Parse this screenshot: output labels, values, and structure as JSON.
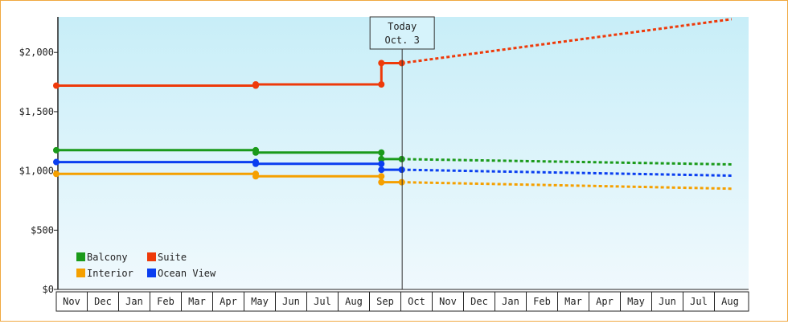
{
  "chart_data": {
    "type": "line",
    "title": "",
    "xlabel": "",
    "ylabel": "",
    "ylim": [
      0,
      2300
    ],
    "y_ticks": [
      {
        "value": 0,
        "label": "$0"
      },
      {
        "value": 500,
        "label": "$500"
      },
      {
        "value": 1000,
        "label": "$1,000"
      },
      {
        "value": 1500,
        "label": "$1,500"
      },
      {
        "value": 2000,
        "label": "$2,000"
      }
    ],
    "x_months": [
      "Nov",
      "Dec",
      "Jan",
      "Feb",
      "Mar",
      "Apr",
      "May",
      "Jun",
      "Jul",
      "Aug",
      "Sep",
      "Oct",
      "Nov",
      "Dec",
      "Jan",
      "Feb",
      "Mar",
      "Apr",
      "May",
      "Jun",
      "Jul",
      "Aug"
    ],
    "today_index": 11,
    "today_label_line1": "Today",
    "today_label_line2": "Oct. 3",
    "grid": false,
    "legend_position": "bottom-left",
    "background": {
      "top": "#c8eef8",
      "bottom": "#f0f9fd"
    },
    "series": [
      {
        "name": "Balcony",
        "color": "#1a9a1a",
        "history": [
          [
            0,
            1175
          ],
          [
            6.35,
            1175
          ],
          [
            6.35,
            1155
          ],
          [
            10.35,
            1155
          ],
          [
            10.35,
            1100
          ],
          [
            11,
            1100
          ]
        ],
        "markers": [
          [
            0,
            1175
          ],
          [
            6.35,
            1175
          ],
          [
            6.35,
            1155
          ],
          [
            10.35,
            1155
          ],
          [
            10.35,
            1100
          ],
          [
            11,
            1100
          ]
        ],
        "forecast": [
          [
            11,
            1100
          ],
          [
            21.5,
            1055
          ]
        ]
      },
      {
        "name": "Suite",
        "color": "#ee3a0a",
        "history": [
          [
            0,
            1720
          ],
          [
            6.35,
            1720
          ],
          [
            6.35,
            1730
          ],
          [
            10.35,
            1730
          ],
          [
            10.35,
            1910
          ],
          [
            11,
            1910
          ]
        ],
        "markers": [
          [
            0,
            1720
          ],
          [
            6.35,
            1720
          ],
          [
            6.35,
            1730
          ],
          [
            10.35,
            1730
          ],
          [
            10.35,
            1910
          ],
          [
            11,
            1910
          ]
        ],
        "forecast": [
          [
            11,
            1910
          ],
          [
            21.5,
            2280
          ]
        ]
      },
      {
        "name": "Interior",
        "color": "#f5a000",
        "history": [
          [
            0,
            975
          ],
          [
            6.35,
            975
          ],
          [
            6.35,
            955
          ],
          [
            10.35,
            955
          ],
          [
            10.35,
            905
          ],
          [
            11,
            905
          ]
        ],
        "markers": [
          [
            0,
            975
          ],
          [
            6.35,
            975
          ],
          [
            6.35,
            955
          ],
          [
            10.35,
            955
          ],
          [
            10.35,
            905
          ],
          [
            11,
            905
          ]
        ],
        "forecast": [
          [
            11,
            905
          ],
          [
            21.5,
            850
          ]
        ]
      },
      {
        "name": "Ocean View",
        "color": "#0a3ef0",
        "history": [
          [
            0,
            1075
          ],
          [
            6.35,
            1075
          ],
          [
            6.35,
            1060
          ],
          [
            10.35,
            1060
          ],
          [
            10.35,
            1010
          ],
          [
            11,
            1010
          ]
        ],
        "markers": [
          [
            0,
            1075
          ],
          [
            6.35,
            1075
          ],
          [
            6.35,
            1060
          ],
          [
            10.35,
            1060
          ],
          [
            10.35,
            1010
          ],
          [
            11,
            1010
          ]
        ],
        "forecast": [
          [
            11,
            1010
          ],
          [
            21.5,
            960
          ]
        ]
      }
    ]
  }
}
